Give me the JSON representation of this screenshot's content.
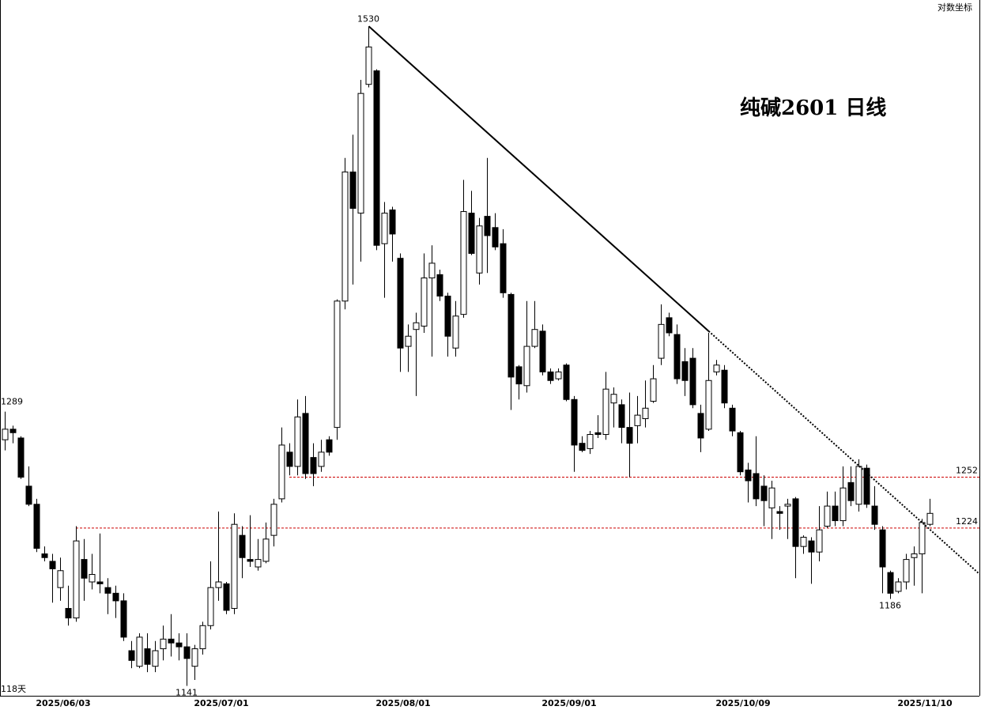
{
  "chart_data": {
    "type": "candlestick",
    "title": "纯碱2601  日线",
    "scale_note": "对数坐标",
    "count_label": "118天",
    "log_scale": true,
    "ylim": [
      1136,
      1548
    ],
    "up_color": "#ffffff",
    "down_color": "#000000",
    "level_color": "#cc0000",
    "categories": [
      null,
      null,
      null,
      null,
      null,
      null,
      null,
      "2025/06/03",
      null,
      null,
      null,
      null,
      null,
      null,
      null,
      null,
      null,
      null,
      null,
      null,
      null,
      null,
      null,
      null,
      null,
      null,
      null,
      "2025/07/01",
      null,
      null,
      null,
      null,
      null,
      null,
      null,
      null,
      null,
      null,
      null,
      null,
      null,
      null,
      null,
      null,
      null,
      null,
      null,
      null,
      null,
      null,
      "2025/08/01",
      null,
      null,
      null,
      null,
      null,
      null,
      null,
      null,
      null,
      null,
      null,
      null,
      null,
      null,
      null,
      null,
      null,
      null,
      null,
      null,
      "2025/09/01",
      null,
      null,
      null,
      null,
      null,
      null,
      null,
      null,
      null,
      null,
      null,
      null,
      null,
      null,
      null,
      null,
      null,
      null,
      null,
      null,
      null,
      "2025/10/09",
      null,
      null,
      null,
      null,
      null,
      null,
      null,
      null,
      null,
      null,
      null,
      null,
      null,
      null,
      null,
      null,
      null,
      null,
      null,
      null,
      null,
      null,
      "2025/11/10",
      null
    ],
    "open": [
      1273,
      1279,
      1274,
      1247,
      1237,
      1210,
      1206,
      1192,
      1181,
      1176,
      1207,
      1195,
      1195,
      1192,
      1189,
      1185,
      1159,
      1151,
      1160,
      1151,
      1160,
      1165,
      1163,
      1161,
      1151,
      1160,
      1172,
      1192,
      1194,
      1181,
      1220,
      1207,
      1203,
      1206,
      1220,
      1240,
      1266,
      1258,
      1288,
      1263,
      1258,
      1273,
      1280,
      1354,
      1434,
      1408,
      1491,
      1500,
      1389,
      1410,
      1380,
      1327,
      1337,
      1339,
      1368,
      1370,
      1357,
      1326,
      1346,
      1408,
      1371,
      1406,
      1399,
      1389,
      1358,
      1315,
      1304,
      1327,
      1336,
      1312,
      1308,
      1316,
      1296,
      1271,
      1268,
      1277,
      1276,
      1294,
      1293,
      1280,
      1281,
      1285,
      1295,
      1320,
      1344,
      1334,
      1318,
      1320,
      1288,
      1279,
      1312,
      1313,
      1291,
      1277,
      1256,
      1254,
      1247,
      1235,
      1233,
      1236,
      1240,
      1214,
      1217,
      1211,
      1225,
      1236,
      1228,
      1249,
      1237,
      1257,
      1236,
      1223,
      1200,
      1190,
      1195,
      1208,
      1210,
      1226
    ],
    "high": [
      1289,
      1281,
      1275,
      1258,
      1240,
      1214,
      1210,
      1208,
      1193,
      1225,
      1218,
      1210,
      1221,
      1197,
      1193,
      1189,
      1164,
      1168,
      1168,
      1164,
      1172,
      1178,
      1168,
      1168,
      1162,
      1174,
      1206,
      1233,
      1195,
      1232,
      1225,
      1231,
      1218,
      1227,
      1240,
      1280,
      1271,
      1296,
      1298,
      1271,
      1273,
      1275,
      1355,
      1443,
      1458,
      1494,
      1530,
      1501,
      1415,
      1412,
      1383,
      1340,
      1347,
      1383,
      1388,
      1373,
      1359,
      1354,
      1429,
      1422,
      1405,
      1443,
      1408,
      1398,
      1359,
      1316,
      1354,
      1354,
      1340,
      1314,
      1314,
      1317,
      1298,
      1275,
      1278,
      1287,
      1312,
      1303,
      1296,
      1300,
      1298,
      1307,
      1316,
      1352,
      1347,
      1340,
      1326,
      1326,
      1293,
      1335,
      1319,
      1316,
      1293,
      1278,
      1260,
      1275,
      1253,
      1250,
      1236,
      1240,
      1241,
      1220,
      1219,
      1236,
      1244,
      1244,
      1258,
      1258,
      1262,
      1259,
      1247,
      1225,
      1201,
      1197,
      1210,
      1214,
      1229,
      1240
    ],
    "low": [
      1267,
      1271,
      1251,
      1236,
      1211,
      1206,
      1184,
      1185,
      1172,
      1174,
      1185,
      1191,
      1189,
      1178,
      1176,
      1164,
      1150,
      1150,
      1148,
      1148,
      1154,
      1156,
      1154,
      1141,
      1144,
      1157,
      1170,
      1185,
      1178,
      1178,
      1197,
      1203,
      1201,
      1205,
      1214,
      1238,
      1253,
      1253,
      1251,
      1247,
      1255,
      1264,
      1273,
      1349,
      1364,
      1378,
      1489,
      1385,
      1356,
      1378,
      1312,
      1312,
      1298,
      1335,
      1321,
      1354,
      1321,
      1321,
      1344,
      1382,
      1364,
      1371,
      1385,
      1356,
      1290,
      1296,
      1300,
      1326,
      1310,
      1305,
      1307,
      1295,
      1255,
      1266,
      1265,
      1274,
      1273,
      1280,
      1271,
      1252,
      1271,
      1280,
      1294,
      1316,
      1333,
      1305,
      1298,
      1291,
      1266,
      1278,
      1310,
      1291,
      1275,
      1253,
      1238,
      1236,
      1225,
      1218,
      1223,
      1218,
      1197,
      1210,
      1194,
      1206,
      1224,
      1225,
      1225,
      1236,
      1233,
      1235,
      1223,
      1189,
      1186,
      1189,
      1191,
      1193,
      1189,
      1225
    ],
    "close": [
      1279,
      1277,
      1252,
      1237,
      1213,
      1208,
      1202,
      1201,
      1176,
      1217,
      1197,
      1199,
      1194,
      1189,
      1185,
      1166,
      1154,
      1166,
      1152,
      1159,
      1165,
      1163,
      1161,
      1155,
      1160,
      1172,
      1192,
      1195,
      1180,
      1226,
      1208,
      1206,
      1207,
      1218,
      1237,
      1270,
      1258,
      1286,
      1254,
      1254,
      1266,
      1266,
      1354,
      1434,
      1411,
      1485,
      1516,
      1388,
      1408,
      1395,
      1326,
      1333,
      1341,
      1368,
      1377,
      1357,
      1333,
      1345,
      1409,
      1383,
      1400,
      1394,
      1387,
      1359,
      1309,
      1305,
      1327,
      1337,
      1312,
      1307,
      1312,
      1296,
      1270,
      1267,
      1276,
      1276,
      1302,
      1299,
      1280,
      1271,
      1287,
      1291,
      1308,
      1340,
      1335,
      1308,
      1307,
      1293,
      1274,
      1307,
      1316,
      1294,
      1278,
      1255,
      1250,
      1240,
      1239,
      1246,
      1232,
      1237,
      1214,
      1219,
      1211,
      1223,
      1236,
      1228,
      1246,
      1239,
      1258,
      1237,
      1226,
      1203,
      1189,
      1195,
      1207,
      1210,
      1227,
      1232
    ],
    "levels": [
      {
        "value": 1252,
        "from": 36
      },
      {
        "value": 1224,
        "from": 9
      }
    ],
    "extremes": [
      {
        "index": 46,
        "value": 1530
      },
      {
        "index": 0,
        "value": 1289
      },
      {
        "index": 23,
        "value": 1141
      },
      {
        "index": 112,
        "value": 1186
      }
    ],
    "trendline": {
      "points": [
        [
          46,
          1530
        ],
        [
          89,
          1336
        ]
      ],
      "extended": true
    }
  }
}
